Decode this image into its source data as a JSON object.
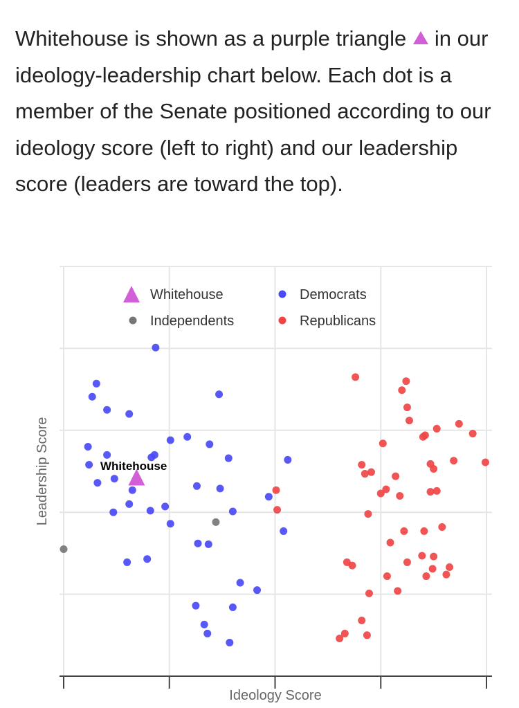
{
  "intro": {
    "line1": "Whitehouse is shown as a purple triangle",
    "rest": "in our ideology-leadership chart below. Each dot is a member of the Senate positioned according to our ideology score (left to right) and our leadership score (leaders are toward the top)."
  },
  "colors": {
    "whitehouse": "#d35fd8",
    "democrats": "#4a4af5",
    "independents": "#777777",
    "republicans": "#f04545"
  },
  "chart_data": {
    "type": "scatter",
    "title": "",
    "xlabel": "Ideology Score",
    "ylabel": "Leadership Score",
    "xlim": [
      0,
      4
    ],
    "ylim": [
      0,
      5
    ],
    "grid": true,
    "legend_position": "top",
    "highlight_label": "Whitehouse",
    "series": [
      {
        "name": "Whitehouse",
        "marker": "triangle",
        "points": [
          [
            0.69,
            2.42
          ]
        ]
      },
      {
        "name": "Democrats",
        "marker": "circle",
        "points": [
          [
            0.87,
            4.01
          ],
          [
            0.31,
            3.57
          ],
          [
            0.27,
            3.41
          ],
          [
            0.41,
            3.25
          ],
          [
            0.62,
            3.2
          ],
          [
            1.47,
            3.44
          ],
          [
            0.23,
            2.8
          ],
          [
            0.41,
            2.7
          ],
          [
            1.01,
            2.88
          ],
          [
            1.17,
            2.92
          ],
          [
            1.38,
            2.83
          ],
          [
            0.83,
            2.67
          ],
          [
            0.86,
            2.7
          ],
          [
            0.24,
            2.58
          ],
          [
            1.56,
            2.66
          ],
          [
            2.12,
            2.64
          ],
          [
            0.32,
            2.36
          ],
          [
            0.48,
            2.41
          ],
          [
            0.65,
            2.27
          ],
          [
            0.62,
            2.1
          ],
          [
            0.82,
            2.02
          ],
          [
            0.96,
            2.07
          ],
          [
            0.47,
            2.0
          ],
          [
            1.26,
            2.32
          ],
          [
            1.48,
            2.29
          ],
          [
            1.94,
            2.19
          ],
          [
            1.6,
            2.01
          ],
          [
            1.01,
            1.86
          ],
          [
            2.08,
            1.77
          ],
          [
            1.27,
            1.62
          ],
          [
            1.37,
            1.61
          ],
          [
            0.6,
            1.39
          ],
          [
            0.79,
            1.43
          ],
          [
            1.67,
            1.14
          ],
          [
            1.83,
            1.05
          ],
          [
            1.25,
            0.86
          ],
          [
            1.6,
            0.84
          ],
          [
            1.33,
            0.63
          ],
          [
            1.36,
            0.52
          ],
          [
            1.57,
            0.41
          ]
        ]
      },
      {
        "name": "Independents",
        "marker": "circle",
        "points": [
          [
            0.0,
            1.55
          ],
          [
            1.44,
            1.88
          ]
        ]
      },
      {
        "name": "Republicans",
        "marker": "circle",
        "points": [
          [
            2.76,
            3.65
          ],
          [
            3.24,
            3.6
          ],
          [
            3.2,
            3.49
          ],
          [
            3.25,
            3.28
          ],
          [
            3.27,
            3.12
          ],
          [
            3.74,
            3.08
          ],
          [
            3.87,
            2.96
          ],
          [
            3.53,
            3.02
          ],
          [
            3.4,
            2.92
          ],
          [
            3.42,
            2.94
          ],
          [
            3.02,
            2.84
          ],
          [
            3.69,
            2.63
          ],
          [
            2.82,
            2.58
          ],
          [
            3.47,
            2.59
          ],
          [
            3.5,
            2.53
          ],
          [
            2.91,
            2.49
          ],
          [
            2.85,
            2.47
          ],
          [
            3.14,
            2.44
          ],
          [
            3.99,
            2.61
          ],
          [
            3.0,
            2.23
          ],
          [
            3.05,
            2.28
          ],
          [
            3.18,
            2.2
          ],
          [
            2.88,
            1.98
          ],
          [
            3.47,
            2.25
          ],
          [
            3.53,
            2.26
          ],
          [
            2.01,
            2.27
          ],
          [
            2.02,
            2.03
          ],
          [
            3.22,
            1.77
          ],
          [
            3.41,
            1.77
          ],
          [
            3.58,
            1.82
          ],
          [
            3.09,
            1.63
          ],
          [
            2.68,
            1.39
          ],
          [
            2.73,
            1.35
          ],
          [
            3.25,
            1.39
          ],
          [
            3.39,
            1.47
          ],
          [
            3.5,
            1.46
          ],
          [
            3.49,
            1.31
          ],
          [
            3.65,
            1.33
          ],
          [
            3.43,
            1.22
          ],
          [
            3.62,
            1.24
          ],
          [
            3.06,
            1.22
          ],
          [
            3.16,
            1.04
          ],
          [
            2.89,
            1.01
          ],
          [
            2.82,
            0.68
          ],
          [
            2.66,
            0.52
          ],
          [
            2.61,
            0.46
          ],
          [
            2.87,
            0.5
          ]
        ]
      }
    ]
  }
}
